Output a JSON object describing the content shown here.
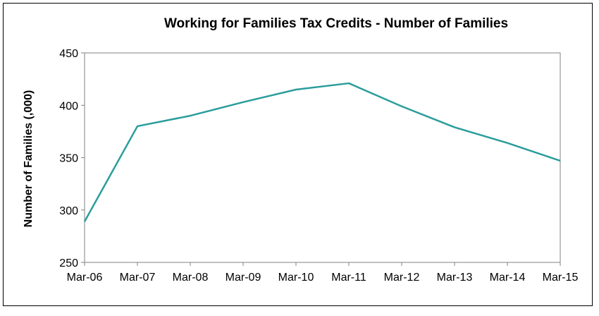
{
  "chart_data": {
    "type": "line",
    "title": "Working for Families  Tax Credits - Number of Families",
    "xlabel": "",
    "ylabel": "Number of Families (,000)",
    "categories": [
      "Mar-06",
      "Mar-07",
      "Mar-08",
      "Mar-09",
      "Mar-10",
      "Mar-11",
      "Mar-12",
      "Mar-13",
      "Mar-14",
      "Mar-15"
    ],
    "series": [
      {
        "values": [
          289,
          380,
          390,
          403,
          415,
          421,
          399,
          379,
          364,
          347
        ],
        "color": "#2a9d9b"
      }
    ],
    "ylim": [
      250,
      450
    ],
    "yticks": [
      250,
      300,
      350,
      400,
      450
    ],
    "grid": false,
    "legend": "none"
  }
}
